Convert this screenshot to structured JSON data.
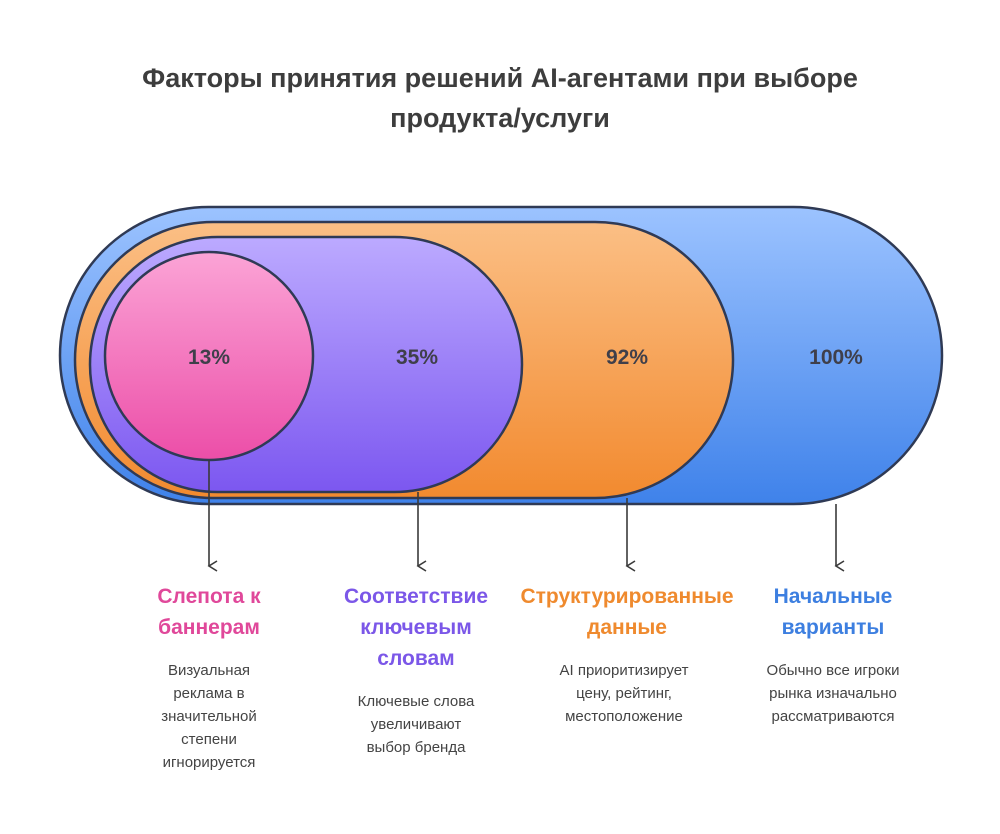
{
  "title": {
    "line1": "Факторы принятия решений AI-агентами при выборе",
    "line2": "продукта/услуги"
  },
  "stages": [
    {
      "percent": "13%",
      "label_line1": "Слепота к",
      "label_line2": "баннерам",
      "label_line3": "",
      "desc": [
        "Визуальная",
        "реклама в",
        "значительной",
        "степени",
        "игнорируется"
      ],
      "color": "#e0489a"
    },
    {
      "percent": "35%",
      "label_line1": "Соответствие",
      "label_line2": "ключевым",
      "label_line3": "словам",
      "desc": [
        "Ключевые слова",
        "увеличивают",
        "выбор бренда"
      ],
      "color": "#7b57e8"
    },
    {
      "percent": "92%",
      "label_line1": "Структурированные",
      "label_line2": "данные",
      "label_line3": "",
      "desc": [
        "AI приоритизирует",
        "цену, рейтинг,",
        "местоположение"
      ],
      "color": "#ef8a2e"
    },
    {
      "percent": "100%",
      "label_line1": "Начальные",
      "label_line2": "варианты",
      "label_line3": "",
      "desc": [
        "Обычно все игроки",
        "рынка изначально",
        "рассматриваются"
      ],
      "color": "#3d7fe0"
    }
  ]
}
